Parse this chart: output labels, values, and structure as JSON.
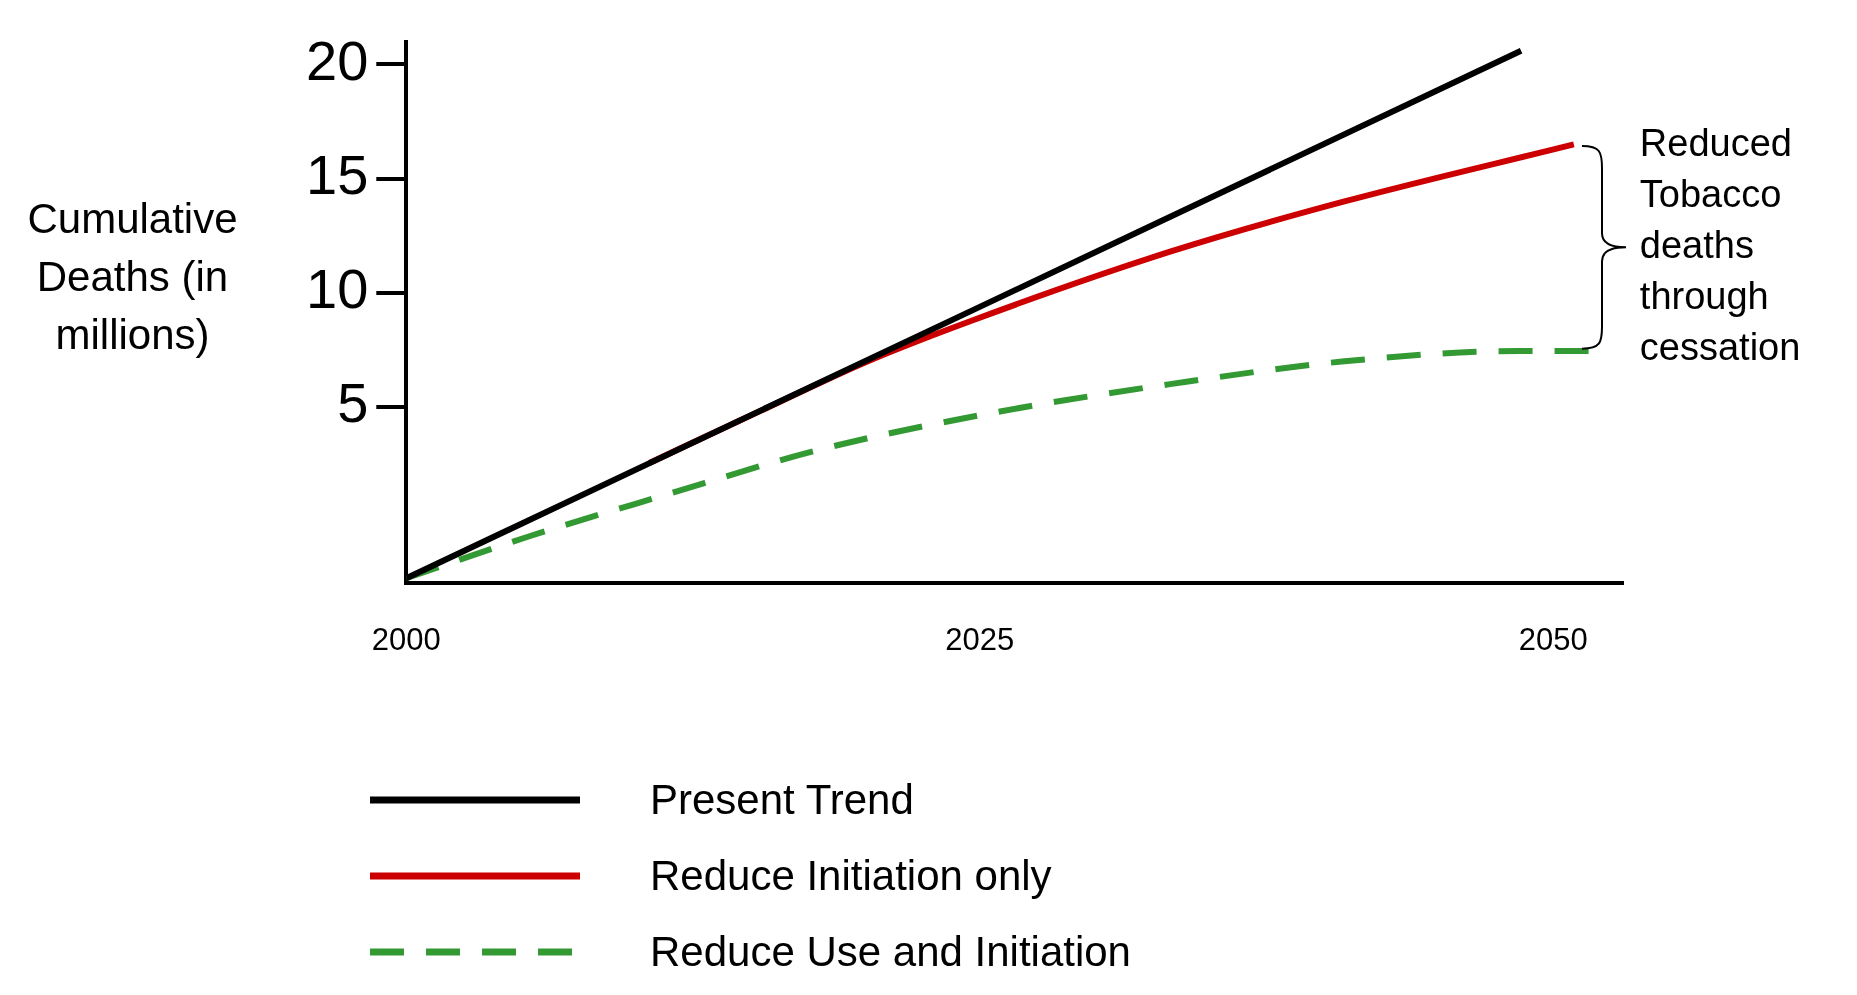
{
  "chart_data": {
    "type": "line",
    "ylabel": "Cumulative Deaths (in millions)",
    "xlim": [
      2000,
      2053
    ],
    "xticks": [
      2000,
      2025,
      2050
    ],
    "ylim": [
      -2.7,
      21
    ],
    "yticks": [
      5,
      10,
      15,
      20
    ],
    "grid": false,
    "legend": "bottom",
    "marker": "none",
    "annotations": [
      "Reduced Tobacco deaths through cessation"
    ],
    "series": [
      {
        "name": "Present Trend",
        "color": "#000000",
        "x": [
          2000,
          2048.6
        ],
        "values": [
          -2.5,
          20.6
        ]
      },
      {
        "name": "Reduce Initiation only",
        "color": "#cc0000",
        "x": [
          2010.6,
          2015.6,
          2020,
          2024.7,
          2033.3,
          2040.9,
          2050.9
        ],
        "values": [
          2.55,
          4.9,
          6.95,
          8.8,
          11.8,
          14.0,
          16.5
        ]
      },
      {
        "name": "Reduce Use and Initiation",
        "color": "#339933",
        "line_style": "dashed",
        "x": [
          2000,
          2005.4,
          2011,
          2018.1,
          2025.7,
          2033.3,
          2040.9,
          2048.5,
          2051.6
        ],
        "values": [
          -2.5,
          -0.65,
          1.06,
          3.15,
          4.77,
          6.0,
          7.0,
          7.45,
          7.45
        ]
      }
    ]
  }
}
